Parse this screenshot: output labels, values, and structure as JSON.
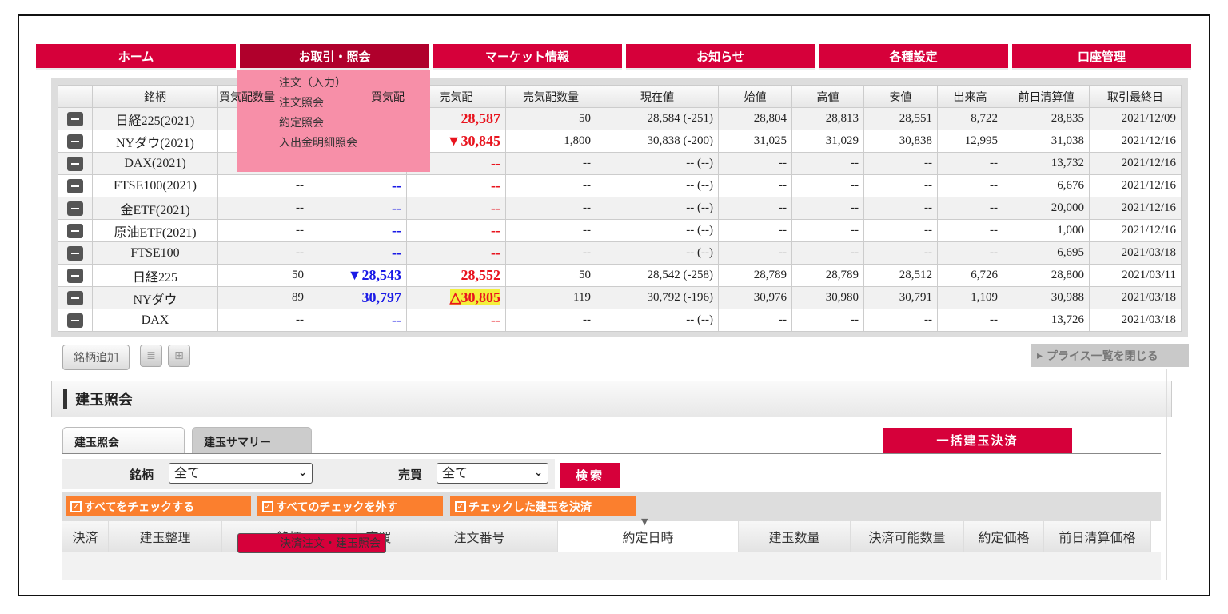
{
  "nav": [
    "ホーム",
    "お取引・照会",
    "マーケット情報",
    "お知らせ",
    "各種設定",
    "口座管理"
  ],
  "menu": [
    "注文（入力）",
    "注文照会",
    "決済注文・建玉照会",
    "約定照会",
    "入出金明細照会"
  ],
  "price_table": {
    "headers": [
      "",
      "銘柄",
      "買気配数量",
      "買気配",
      "売気配",
      "売気配数量",
      "現在値",
      "始値",
      "高値",
      "安値",
      "出来高",
      "前日清算値",
      "取引最終日"
    ],
    "rows": [
      {
        "name": "日経225(2021)",
        "bid_qty": "",
        "bid": "",
        "ask": "28,587",
        "ask_qty": "50",
        "last": "28,584 (-251)",
        "open": "28,804",
        "high": "28,813",
        "low": "28,551",
        "volume": "8,722",
        "prev": "28,835",
        "last_day": "2021/12/09"
      },
      {
        "name": "NYダウ(2021)",
        "bid_qty": "",
        "bid": "",
        "ask": "▼30,845",
        "ask_qty": "1,800",
        "last": "30,838 (-200)",
        "open": "31,025",
        "high": "31,029",
        "low": "30,838",
        "volume": "12,995",
        "prev": "31,038",
        "last_day": "2021/12/16"
      },
      {
        "name": "DAX(2021)",
        "bid_qty": "",
        "bid": "",
        "ask": "--",
        "ask_qty": "--",
        "last": "-- (--)",
        "open": "--",
        "high": "--",
        "low": "--",
        "volume": "--",
        "prev": "13,732",
        "last_day": "2021/12/16"
      },
      {
        "name": "FTSE100(2021)",
        "bid_qty": "--",
        "bid": "--",
        "ask": "--",
        "ask_qty": "--",
        "last": "-- (--)",
        "open": "--",
        "high": "--",
        "low": "--",
        "volume": "--",
        "prev": "6,676",
        "last_day": "2021/12/16"
      },
      {
        "name": "金ETF(2021)",
        "bid_qty": "--",
        "bid": "--",
        "ask": "--",
        "ask_qty": "--",
        "last": "-- (--)",
        "open": "--",
        "high": "--",
        "low": "--",
        "volume": "--",
        "prev": "20,000",
        "last_day": "2021/12/16"
      },
      {
        "name": "原油ETF(2021)",
        "bid_qty": "--",
        "bid": "--",
        "ask": "--",
        "ask_qty": "--",
        "last": "-- (--)",
        "open": "--",
        "high": "--",
        "low": "--",
        "volume": "--",
        "prev": "1,000",
        "last_day": "2021/12/16"
      },
      {
        "name": "FTSE100",
        "bid_qty": "--",
        "bid": "--",
        "ask": "--",
        "ask_qty": "--",
        "last": "-- (--)",
        "open": "--",
        "high": "--",
        "low": "--",
        "volume": "--",
        "prev": "6,695",
        "last_day": "2021/03/18"
      },
      {
        "name": "日経225",
        "bid_qty": "50",
        "bid": "▼28,543",
        "ask": "28,552",
        "ask_qty": "50",
        "last": "28,542 (-258)",
        "open": "28,789",
        "high": "28,789",
        "low": "28,512",
        "volume": "6,726",
        "prev": "28,800",
        "last_day": "2021/03/11"
      },
      {
        "name": "NYダウ",
        "bid_qty": "89",
        "bid": "30,797",
        "ask": "△30,805",
        "ask_highlight": true,
        "ask_qty": "119",
        "last": "30,792 (-196)",
        "open": "30,976",
        "high": "30,980",
        "low": "30,791",
        "volume": "1,109",
        "prev": "30,988",
        "last_day": "2021/03/18"
      },
      {
        "name": "DAX",
        "bid_qty": "--",
        "bid": "--",
        "ask": "--",
        "ask_qty": "--",
        "last": "-- (--)",
        "open": "--",
        "high": "--",
        "low": "--",
        "volume": "--",
        "prev": "13,726",
        "last_day": "2021/03/18"
      }
    ]
  },
  "add_symbol": "銘柄追加",
  "close_price_list": "プライス一覧を閉じる",
  "section_title": "建玉照会",
  "tabs": [
    "建玉照会",
    "建玉サマリー"
  ],
  "bulk_settle": "一括建玉決済",
  "filter": {
    "symbol_label": "銘柄",
    "symbol_value": "全て",
    "side_label": "売買",
    "side_value": "全て",
    "search": "検索"
  },
  "check_buttons": [
    "すべてをチェックする",
    "すべてのチェックを外す",
    "チェックした建玉を決済"
  ],
  "position_headers": [
    "決済",
    "建玉整理",
    "銘柄",
    "売買",
    "注文番号",
    "約定日時",
    "建玉数量",
    "決済可能数量",
    "約定価格",
    "前日清算価格"
  ],
  "colors": {
    "brand": "#d6003a",
    "menu": "#f78fa8",
    "ask": "#e8141e",
    "bid": "#1a1ae6",
    "check": "#fb7f2e"
  }
}
